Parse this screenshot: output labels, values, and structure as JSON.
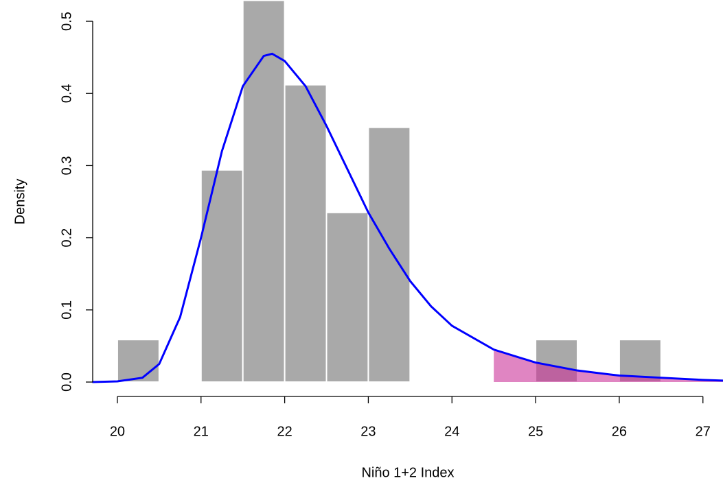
{
  "chart_data": {
    "type": "histogram",
    "x_label": "Niño 1+2 Index",
    "y_label": "Density",
    "bins": [
      20,
      20.5,
      21,
      21.5,
      22,
      22.5,
      23,
      23.5,
      24,
      24.5,
      25,
      25.5,
      26,
      26.5
    ],
    "values": [
      0.0588,
      0,
      0.294,
      0.529,
      0.412,
      0.235,
      0.353,
      0,
      0,
      0,
      0.0588,
      0,
      0.0588
    ],
    "color": "#a9a9a9",
    "curve": {
      "x": [
        19.7,
        20.0,
        20.3,
        20.5,
        20.75,
        21.0,
        21.25,
        21.5,
        21.75,
        21.85,
        22.0,
        22.25,
        22.5,
        22.75,
        23.0,
        23.25,
        23.5,
        23.75,
        24.0,
        24.5,
        25.0,
        25.5,
        26.0,
        26.5,
        27.0,
        27.24
      ],
      "y": [
        0,
        0.001,
        0.006,
        0.025,
        0.09,
        0.2,
        0.32,
        0.41,
        0.452,
        0.455,
        0.445,
        0.41,
        0.355,
        0.295,
        0.235,
        0.185,
        0.14,
        0.105,
        0.078,
        0.045,
        0.027,
        0.016,
        0.009,
        0.006,
        0.003,
        0.002
      ],
      "color": "#0000ff"
    },
    "shade": {
      "from": 24.5,
      "color": "#cc3399"
    },
    "xlim": [
      19.705,
      27.24
    ],
    "ylim": [
      0,
      0.5295
    ],
    "xticks": [
      20,
      21,
      22,
      23,
      24,
      25,
      26,
      27
    ],
    "yticks": [
      {
        "value": 0,
        "label": "0.0"
      },
      0.1,
      0.2,
      0.3,
      0.4,
      0.5
    ]
  }
}
